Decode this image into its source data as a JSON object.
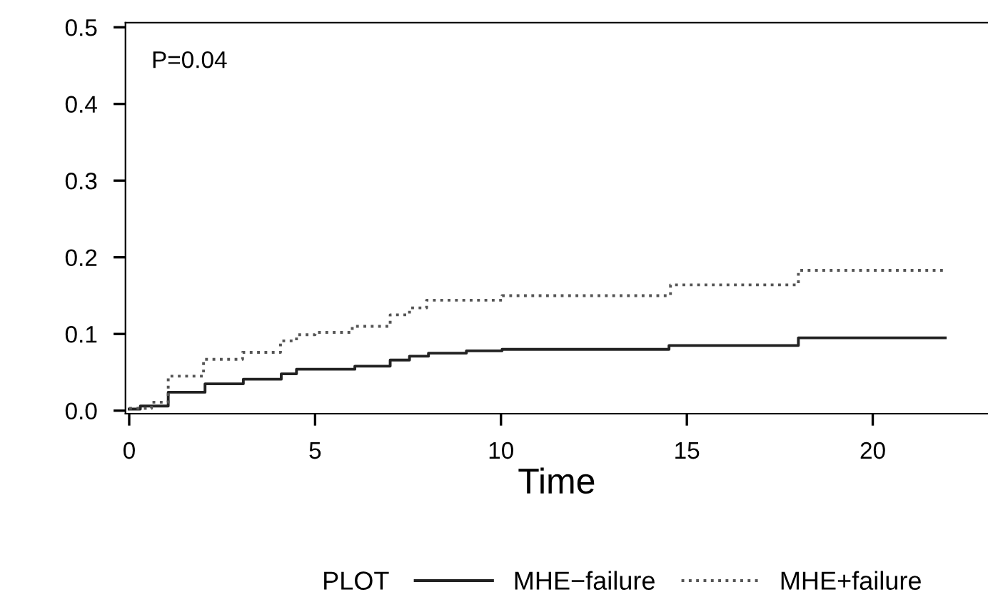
{
  "chart_data": {
    "type": "step",
    "xlabel": "Time",
    "legend_title": "PLOT",
    "legend": "bottom",
    "annotations": [
      "P=0.04"
    ],
    "xlim": [
      -0.1,
      23.1
    ],
    "xticks": [
      0,
      5,
      10,
      15,
      20
    ],
    "ylim": [
      -0.004,
      0.506
    ],
    "yticks": [
      {
        "value": 0,
        "label": "0.0"
      },
      0.1,
      0.2,
      0.3,
      0.4,
      0.5
    ],
    "grid": false,
    "series": [
      {
        "name": "MHE−failure",
        "color": "#222222",
        "line_style": "solid",
        "x": [
          0,
          0.3,
          1.05,
          2.04,
          3.07,
          4.09,
          4.5,
          6.07,
          7.02,
          7.54,
          8.05,
          9.07,
          10.03,
          14.52,
          18.0,
          21.95
        ],
        "values": [
          0.002,
          0.006,
          0.024,
          0.035,
          0.041,
          0.048,
          0.054,
          0.058,
          0.066,
          0.071,
          0.075,
          0.078,
          0.08,
          0.085,
          0.095,
          0.095
        ]
      },
      {
        "name": "MHE+failure",
        "color": "#555555",
        "line_style": "dotted",
        "x": [
          0,
          0.6,
          1.05,
          2.0,
          3.05,
          4.07,
          4.5,
          5.0,
          6.0,
          7.02,
          7.54,
          8.0,
          10.03,
          14.56,
          18.0,
          21.95
        ],
        "values": [
          0.003,
          0.011,
          0.045,
          0.067,
          0.076,
          0.091,
          0.099,
          0.102,
          0.11,
          0.125,
          0.134,
          0.144,
          0.15,
          0.164,
          0.183,
          0.183
        ]
      }
    ]
  }
}
